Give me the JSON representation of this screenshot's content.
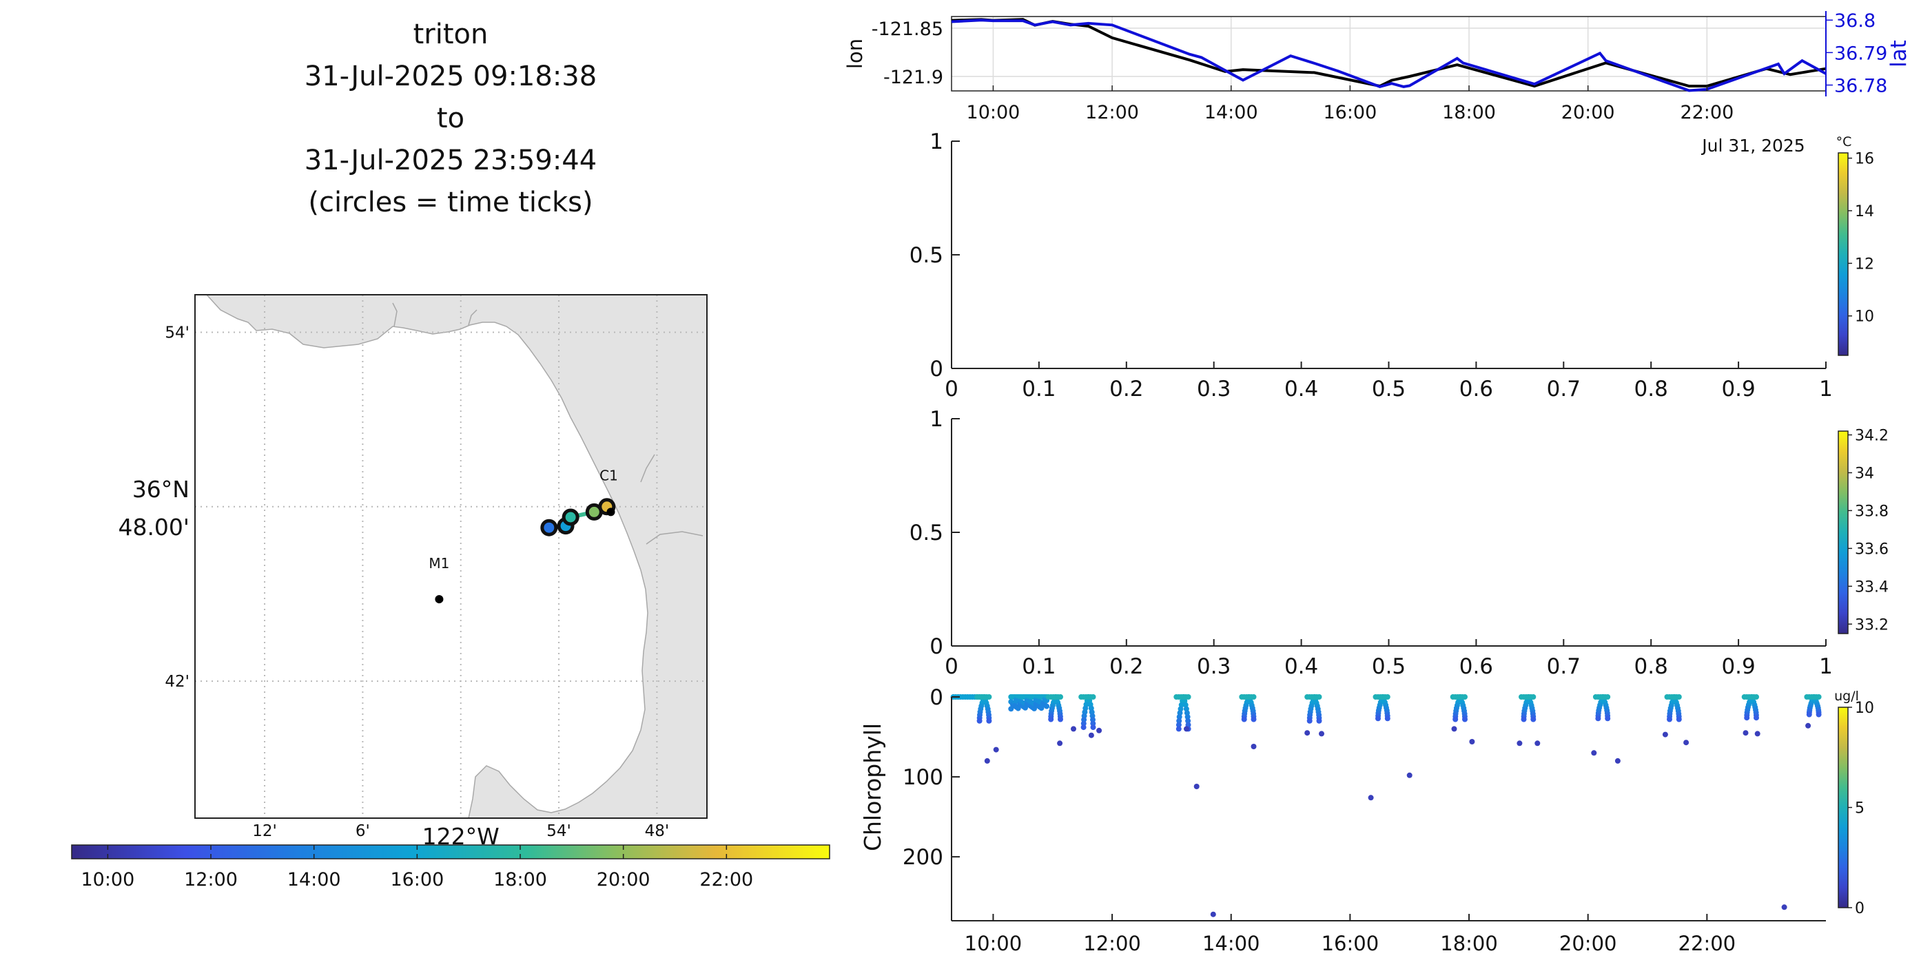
{
  "header": {
    "lines": [
      "triton",
      "31-Jul-2025 09:18:38",
      "to",
      "31-Jul-2025 23:59:44",
      "(circles = time ticks)"
    ]
  },
  "colors": {
    "lon_line": "#000000",
    "lat_line": "#1010d8",
    "lat_axis": "#1010d8",
    "land": "#e3e3e3",
    "coast": "#b0b0b0",
    "grid": "#b8b8b8",
    "axis": "#222222"
  },
  "map": {
    "lat_ticks": [
      {
        "lat": 36.9,
        "label": "54'"
      },
      {
        "lat": 36.7,
        "label": "42'"
      }
    ],
    "lat_major": {
      "lat": 36.8,
      "label1": "36°N",
      "label2": "48.00'"
    },
    "lon_ticks": [
      {
        "lon": -122.2,
        "label": "12'"
      },
      {
        "lon": -122.1,
        "label": "6'"
      },
      {
        "lon": -121.9,
        "label": "54'"
      },
      {
        "lon": -121.8,
        "label": "48'"
      }
    ],
    "lon_major": {
      "lon": -122.0,
      "label": "122°W"
    },
    "stations": [
      {
        "name": "M1",
        "lat": 36.747,
        "lon": -122.022
      },
      {
        "name": "C1",
        "lat": 36.797,
        "lon": -121.847
      }
    ],
    "time_circles": [
      {
        "lat": 36.788,
        "lon": -121.91
      },
      {
        "lat": 36.789,
        "lon": -121.893
      },
      {
        "lat": 36.794,
        "lon": -121.888
      },
      {
        "lat": 36.797,
        "lon": -121.864
      },
      {
        "lat": 36.8,
        "lon": -121.851
      }
    ]
  },
  "time_colorbar": {
    "ticks": [
      "10:00",
      "12:00",
      "14:00",
      "16:00",
      "18:00",
      "20:00",
      "22:00"
    ]
  },
  "chart_data": [
    {
      "type": "line",
      "title": "",
      "xlabel": "",
      "x_ticks": [
        "10:00",
        "12:00",
        "14:00",
        "16:00",
        "18:00",
        "20:00",
        "22:00"
      ],
      "x_caption": "Jul 31, 2025",
      "xlim_hours": [
        9.3,
        24.0
      ],
      "left_axis": {
        "label": "lon",
        "ticks": [
          "-121.85",
          "-121.9"
        ],
        "ylim": [
          -121.915,
          -121.838
        ]
      },
      "right_axis": {
        "label": "lat",
        "ticks": [
          "36.8",
          "36.79",
          "36.78"
        ],
        "ylim": [
          36.7782,
          36.8011
        ]
      },
      "series": [
        {
          "axis": "lon",
          "x": [
            9.3,
            9.8,
            10.0,
            10.5,
            10.7,
            11.0,
            11.3,
            11.6,
            12.0,
            13.3,
            13.9,
            14.2,
            15.4,
            16.5,
            16.7,
            17.0,
            17.8,
            19.1,
            20.3,
            21.7,
            22.0,
            23.0,
            23.4,
            24.0
          ],
          "y": [
            -121.842,
            -121.841,
            -121.842,
            -121.841,
            -121.847,
            -121.843,
            -121.846,
            -121.848,
            -121.86,
            -121.883,
            -121.895,
            -121.893,
            -121.896,
            -121.91,
            -121.904,
            -121.9,
            -121.888,
            -121.91,
            -121.886,
            -121.91,
            -121.91,
            -121.892,
            -121.898,
            -121.892
          ]
        },
        {
          "axis": "lat",
          "x": [
            9.3,
            9.8,
            10.0,
            10.5,
            10.7,
            11.0,
            11.3,
            11.6,
            12.0,
            13.3,
            13.5,
            14.2,
            15.0,
            15.4,
            15.8,
            16.5,
            16.7,
            16.9,
            17.0,
            17.8,
            17.9,
            19.1,
            20.2,
            20.3,
            21.7,
            22.0,
            23.2,
            23.3,
            23.6,
            24.0
          ],
          "y": [
            36.7995,
            36.8,
            36.7998,
            36.7998,
            36.7985,
            36.7995,
            36.7985,
            36.799,
            36.7985,
            36.7895,
            36.7885,
            36.7815,
            36.789,
            36.7867,
            36.7843,
            36.7795,
            36.7805,
            36.7795,
            36.7798,
            36.7882,
            36.7868,
            36.7803,
            36.7898,
            36.7875,
            36.7783,
            36.7787,
            36.7865,
            36.7835,
            36.7875,
            36.7835
          ]
        }
      ]
    },
    {
      "type": "scatter",
      "title": "",
      "xlabel": "",
      "ylabel": "",
      "x_ticks": [
        "0",
        "0.1",
        "0.2",
        "0.3",
        "0.4",
        "0.5",
        "0.6",
        "0.7",
        "0.8",
        "0.9",
        "1"
      ],
      "y_ticks": [
        "0",
        "0.5",
        "1"
      ],
      "xlim": [
        0,
        1
      ],
      "ylim": [
        0,
        1
      ],
      "series": [],
      "colorbar": {
        "unit": "°C",
        "range": [
          8.5,
          16.2
        ],
        "ticks": [
          "10",
          "12",
          "14",
          "16"
        ]
      }
    },
    {
      "type": "scatter",
      "title": "",
      "xlabel": "",
      "ylabel": "",
      "x_ticks": [
        "0",
        "0.1",
        "0.2",
        "0.3",
        "0.4",
        "0.5",
        "0.6",
        "0.7",
        "0.8",
        "0.9",
        "1"
      ],
      "y_ticks": [
        "0",
        "0.5",
        "1"
      ],
      "xlim": [
        0,
        1
      ],
      "ylim": [
        0,
        1
      ],
      "series": [],
      "colorbar": {
        "unit": "",
        "range": [
          33.15,
          34.22
        ],
        "ticks": [
          "33.2",
          "33.4",
          "33.6",
          "33.8",
          "34",
          "34.2"
        ]
      }
    },
    {
      "type": "scatter",
      "title": "",
      "xlabel": "",
      "ylabel": "Chlorophyll",
      "x_ticks": [
        "10:00",
        "12:00",
        "14:00",
        "16:00",
        "18:00",
        "20:00",
        "22:00"
      ],
      "y_ticks": [
        "0",
        "100",
        "200"
      ],
      "xlim_hours": [
        9.3,
        24.0
      ],
      "ylim_depth": [
        0,
        280
      ],
      "colorbar": {
        "unit": "ug/l",
        "range": [
          0,
          10
        ],
        "ticks": [
          "0",
          "5",
          "10"
        ]
      },
      "profiles": [
        {
          "t": 9.85,
          "max_depth": 30
        },
        {
          "t": 11.05,
          "max_depth": 28
        },
        {
          "t": 11.6,
          "max_depth": 38
        },
        {
          "t": 13.2,
          "max_depth": 40
        },
        {
          "t": 14.3,
          "max_depth": 28
        },
        {
          "t": 15.4,
          "max_depth": 30
        },
        {
          "t": 16.55,
          "max_depth": 27
        },
        {
          "t": 17.85,
          "max_depth": 28
        },
        {
          "t": 19.0,
          "max_depth": 28
        },
        {
          "t": 20.25,
          "max_depth": 27
        },
        {
          "t": 21.45,
          "max_depth": 28
        },
        {
          "t": 22.75,
          "max_depth": 26
        },
        {
          "t": 23.8,
          "max_depth": 22
        }
      ],
      "deep_points": [
        {
          "t": 9.9,
          "depth": 80
        },
        {
          "t": 10.05,
          "depth": 66
        },
        {
          "t": 11.12,
          "depth": 58
        },
        {
          "t": 11.35,
          "depth": 40
        },
        {
          "t": 11.65,
          "depth": 48
        },
        {
          "t": 11.78,
          "depth": 42
        },
        {
          "t": 13.25,
          "depth": 40
        },
        {
          "t": 13.42,
          "depth": 112
        },
        {
          "t": 14.38,
          "depth": 62
        },
        {
          "t": 13.7,
          "depth": 272
        },
        {
          "t": 15.28,
          "depth": 45
        },
        {
          "t": 15.52,
          "depth": 46
        },
        {
          "t": 16.35,
          "depth": 126
        },
        {
          "t": 17.0,
          "depth": 98
        },
        {
          "t": 17.75,
          "depth": 40
        },
        {
          "t": 18.05,
          "depth": 56
        },
        {
          "t": 18.85,
          "depth": 58
        },
        {
          "t": 19.15,
          "depth": 58
        },
        {
          "t": 20.1,
          "depth": 70
        },
        {
          "t": 20.5,
          "depth": 80
        },
        {
          "t": 21.3,
          "depth": 47
        },
        {
          "t": 21.65,
          "depth": 57
        },
        {
          "t": 22.65,
          "depth": 45
        },
        {
          "t": 22.85,
          "depth": 46
        },
        {
          "t": 23.3,
          "depth": 263
        },
        {
          "t": 23.7,
          "depth": 36
        }
      ]
    }
  ]
}
